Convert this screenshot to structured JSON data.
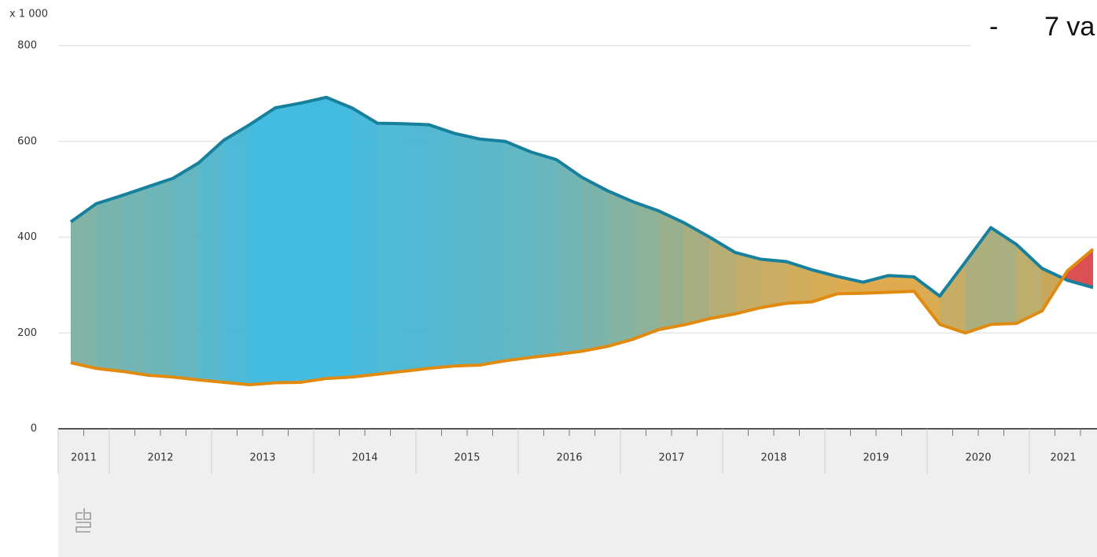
{
  "chart_data": {
    "type": "area-between",
    "y_unit": "x 1 000",
    "years": [
      "2011",
      "2012",
      "2013",
      "2014",
      "2015",
      "2016",
      "2017",
      "2018",
      "2019",
      "2020",
      "2021"
    ],
    "ylim": [
      0,
      800
    ],
    "yticks": [
      0,
      200,
      400,
      600,
      800
    ],
    "grid": true,
    "series": [
      {
        "color": "#17809d",
        "values": [
          432,
          470,
          487,
          505,
          523,
          555,
          603,
          635,
          670,
          680,
          692,
          670,
          638,
          637,
          635,
          617,
          605,
          600,
          578,
          562,
          525,
          497,
          474,
          455,
          430,
          400,
          368,
          354,
          349,
          332,
          318,
          306,
          320,
          317,
          277,
          348,
          420,
          385,
          335,
          310,
          295
        ]
      },
      {
        "color": "#e08a10",
        "values": [
          138,
          126,
          120,
          112,
          108,
          102,
          97,
          92,
          96,
          97,
          105,
          108,
          114,
          120,
          126,
          131,
          133,
          142,
          149,
          155,
          162,
          172,
          187,
          207,
          217,
          230,
          240,
          253,
          262,
          265,
          282,
          283,
          285,
          287,
          218,
          200,
          218,
          220,
          246,
          330,
          375
        ]
      }
    ],
    "slide_fragment": [
      "-",
      "7 va"
    ]
  }
}
